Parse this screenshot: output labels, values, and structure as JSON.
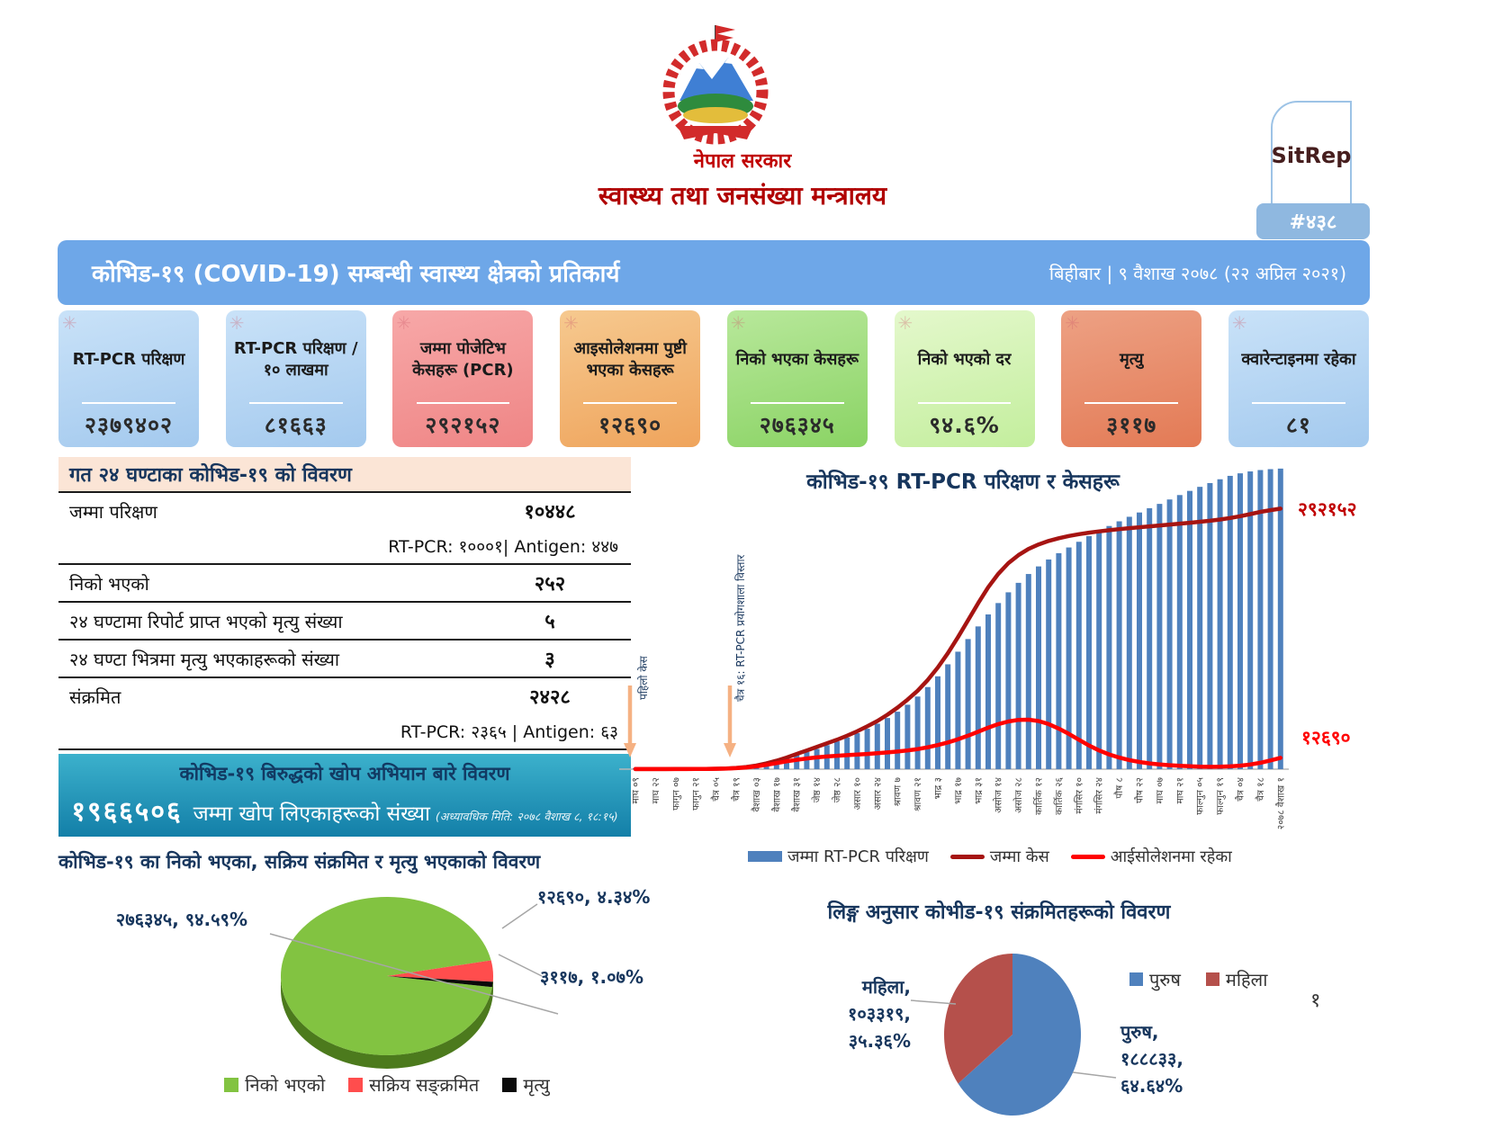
{
  "header": {
    "government": "नेपाल सरकार",
    "ministry": "स्वास्थ्य तथा जनसंख्या मन्त्रालय",
    "sitrep_label": "SitRep",
    "sitrep_number": "#४३८",
    "title": "कोभिड-१९ (COVID-19) सम्बन्धी स्वास्थ्य क्षेत्रको प्रतिकार्य",
    "date": "बिहीबार | ९ वैशाख २०७८ (२२ अप्रिल २०२१)"
  },
  "stat_cards": [
    {
      "title": "RT-PCR परिक्षण",
      "value": "२३७९४०२",
      "color_top": "#c9e2f8",
      "color_bottom": "#a3c9ee"
    },
    {
      "title": "RT-PCR परिक्षण /१० लाखमा",
      "value": "८१६६३",
      "color_top": "#c9e2f8",
      "color_bottom": "#a3c9ee"
    },
    {
      "title": "जम्मा पोजेटिभ केसहरू (PCR)",
      "value": "२९२१५२",
      "color_top": "#f7a8a8",
      "color_bottom": "#ef8585"
    },
    {
      "title": "आइसोलेशनमा पुष्टी भएका केसहरू",
      "value": "१२६९०",
      "color_top": "#f6c98f",
      "color_bottom": "#efa45c"
    },
    {
      "title": "निको भएका केसहरू",
      "value": "२७६३४५",
      "color_top": "#b8e89b",
      "color_bottom": "#8ad364"
    },
    {
      "title": "निको भएको दर",
      "value": "९४.६%",
      "color_top": "#e4f8cc",
      "color_bottom": "#c3ee9d"
    },
    {
      "title": "मृत्यु",
      "value": "३११७",
      "color_top": "#eda184",
      "color_bottom": "#e37a55"
    },
    {
      "title": "क्वारेन्टाइनमा रहेका",
      "value": "८१",
      "color_top": "#c9e2f8",
      "color_bottom": "#a3c9ee"
    }
  ],
  "last24": {
    "title": "गत २४ घण्टाका कोभिड-१९ को विवरण",
    "rows": [
      {
        "label": "जम्मा परिक्षण",
        "value": "१०४४८",
        "sub": "RT-PCR: १०००१| Antigen: ४४७"
      },
      {
        "label": "निको भएको",
        "value": "२५२"
      },
      {
        "label": "२४ घण्टामा रिपोर्ट प्राप्त भएको मृत्यु संख्या",
        "value": "५"
      },
      {
        "label": "२४ घण्टा भित्रमा मृत्यु भएकाहरूको संख्या",
        "value": "३"
      },
      {
        "label": "संक्रमित",
        "value": "२४२८",
        "sub": "RT-PCR: २३६५ | Antigen: ६३"
      }
    ]
  },
  "vaccine": {
    "title": "कोभिड-१९ बिरुद्धको खोप अभियान बारे विवरण",
    "count": "१९६६५०६",
    "count_label": "जम्मा खोप लिएकाहरूको संख्या",
    "updated": "(अध्यावधिक मिति: २०७८ वैशाख ८, १८:१५)"
  },
  "chart_data": [
    {
      "type": "pie",
      "style": "3d",
      "title": "कोभिड-१९ का निको भएका, सक्रिय संक्रमित र मृत्यु भएकाको विवरण",
      "legend_position": "bottom",
      "slices": [
        {
          "label": "निको भएको",
          "value": 276345,
          "pct": 94.59,
          "color": "#82c341",
          "side_color": "#4c7a1d",
          "data_label": "२७६३४५, ९४.५९%"
        },
        {
          "label": "सक्रिय सङ्क्रमित",
          "value": 12690,
          "pct": 4.34,
          "color": "#ff4d4d",
          "data_label": "१२६९०, ४.३४%"
        },
        {
          "label": "मृत्यु",
          "value": 3117,
          "pct": 1.07,
          "color": "#0a0a0a",
          "data_label": "३११७, १.०७%"
        }
      ],
      "start_angle_deg": 8
    },
    {
      "type": "bar+line",
      "title": "कोभिड-१९ RT-PCR परिक्षण र केसहरू",
      "label_every": 2,
      "x_labels": [
        "माघ ०९",
        "माघ २२",
        "फागुन ०७",
        "फागुन २१",
        "चैत्र ०५",
        "चैत्र १९",
        "वैशाख ०३",
        "वैशाख १७",
        "वैशाख ३१",
        "जेष्ठ १४",
        "जेष्ठ २८",
        "असार १०",
        "असार २४",
        "श्रावण ७",
        "श्रावण २१",
        "भाद्र ३",
        "भाद्र १७",
        "भाद्र ३१",
        "असोज १४",
        "असोज २८",
        "कार्तिक १२",
        "कार्तिक २६",
        "मंगसिर १०",
        "मंगसिर २४",
        "पौष ८",
        "पौष २२",
        "माघ ०७",
        "माघ २१",
        "फाल्गुन ०५",
        "फाल्गुन १९",
        "चैत्र ०४",
        "चैत्र १८",
        "२०७८ वैशाख १"
      ],
      "primary_max": 2400000,
      "secondary_max": 340000,
      "series": [
        {
          "name": "जम्मा RT-PCR परिक्षण",
          "type": "bar",
          "axis": "primary",
          "color": "#4f81bd",
          "values": [
            500,
            700,
            1000,
            1400,
            1800,
            2300,
            3000,
            4000,
            6000,
            9000,
            13000,
            19000,
            28000,
            42000,
            62000,
            85000,
            110000,
            135000,
            160000,
            190000,
            220000,
            250000,
            285000,
            320000,
            360000,
            405000,
            455000,
            510000,
            575000,
            650000,
            735000,
            830000,
            930000,
            1030000,
            1130000,
            1225000,
            1315000,
            1400000,
            1475000,
            1545000,
            1605000,
            1660000,
            1710000,
            1755000,
            1800000,
            1845000,
            1885000,
            1925000,
            1962000,
            1998000,
            2032000,
            2066000,
            2100000,
            2135000,
            2170000,
            2203000,
            2235000,
            2265000,
            2295000,
            2322000,
            2342000,
            2357000,
            2368000,
            2375000,
            2379402
          ]
        },
        {
          "name": "जम्मा केस",
          "type": "line",
          "axis": "secondary",
          "color": "#a61412",
          "values": [
            100,
            110,
            120,
            140,
            160,
            200,
            260,
            350,
            500,
            800,
            1400,
            2400,
            4000,
            6500,
            9500,
            13000,
            17000,
            21000,
            25000,
            29000,
            33000,
            37500,
            42500,
            48000,
            54000,
            61000,
            69000,
            78000,
            88000,
            100000,
            114000,
            130000,
            148000,
            167000,
            186000,
            204000,
            219000,
            231000,
            240000,
            247000,
            252000,
            256000,
            259000,
            261500,
            263500,
            265200,
            266700,
            268000,
            269200,
            270300,
            271300,
            272300,
            273300,
            274300,
            275300,
            276300,
            277400,
            278600,
            280000,
            281700,
            283700,
            286000,
            288500,
            290500,
            292152
          ]
        },
        {
          "name": "आईसोलेशनमा रहेका",
          "type": "line",
          "axis": "secondary",
          "color": "#ff0000",
          "values": [
            90,
            95,
            100,
            110,
            120,
            150,
            200,
            280,
            400,
            650,
            1100,
            1900,
            3100,
            4800,
            6800,
            8800,
            10500,
            12000,
            13200,
            14200,
            15000,
            15700,
            16400,
            17100,
            17900,
            18800,
            19800,
            21000,
            22500,
            24500,
            27000,
            30000,
            33500,
            37500,
            42000,
            46500,
            50500,
            53500,
            55300,
            55500,
            54000,
            50500,
            45500,
            39500,
            33000,
            26500,
            21000,
            16500,
            13000,
            10200,
            8100,
            6500,
            5300,
            4400,
            3700,
            3200,
            2800,
            2600,
            2700,
            3100,
            3900,
            5200,
            7200,
            9800,
            12690
          ]
        }
      ],
      "end_labels": [
        {
          "text": "२९२१५२",
          "color": "#c00000"
        },
        {
          "text": "१२६९०",
          "color": "#ff0000"
        }
      ],
      "annotations": [
        {
          "text": "पहिलो केस",
          "bar_index": 0
        },
        {
          "text": "चैत्र १६: RT-PCR प्रयोगशाला विस्तार",
          "bar_index": 9
        }
      ]
    },
    {
      "type": "pie",
      "title": "लिङ्ग अनुसार कोभीड-१९ संक्रमितहरूको विवरण",
      "legend_position": "right",
      "start_angle_deg": -90,
      "slices": [
        {
          "label": "पुरुष",
          "value": 188833,
          "pct": 64.64,
          "color": "#4f81bd",
          "data_label": "पुरुष,\n१८८८३३,\n६४.६४%"
        },
        {
          "label": "महिला",
          "value": 103319,
          "pct": 35.36,
          "color": "#b5504b",
          "data_label": "महिला,\n१०३३१९,\n३५.३६%"
        }
      ]
    }
  ],
  "page_number": "१"
}
